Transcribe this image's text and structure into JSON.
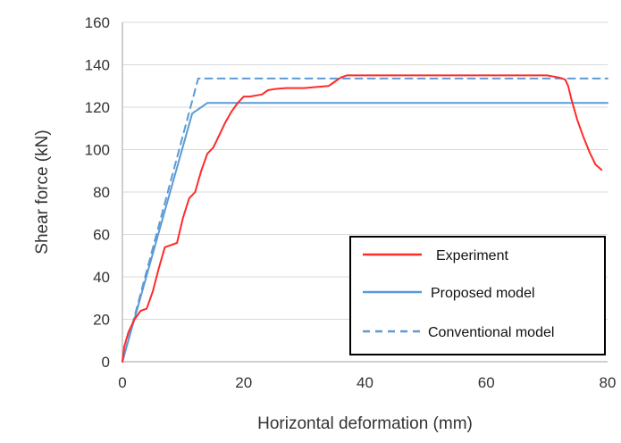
{
  "chart_data": {
    "type": "line",
    "title": "",
    "xlabel": "Horizontal deformation (mm)",
    "ylabel": "Shear force (kN)",
    "xlim": [
      0,
      80
    ],
    "ylim": [
      0,
      160
    ],
    "xticks": [
      0,
      20,
      40,
      60,
      80
    ],
    "yticks": [
      0,
      20,
      40,
      60,
      80,
      100,
      120,
      140,
      160
    ],
    "grid": "horizontal",
    "legend_position": "bottom-right",
    "series": [
      {
        "name": "Experiment",
        "color": "#ff2a2a",
        "style": "solid",
        "x": [
          0,
          0.3,
          1,
          2,
          3,
          4,
          5,
          6,
          7,
          8,
          9,
          10,
          11,
          12,
          13,
          14,
          15,
          16,
          17,
          18,
          19,
          20,
          21,
          23,
          24,
          25,
          27,
          30,
          32,
          34,
          35,
          36,
          37,
          40,
          45,
          50,
          55,
          60,
          65,
          70,
          72,
          73,
          73.5,
          74,
          75,
          76,
          77,
          78,
          79
        ],
        "y": [
          0,
          7,
          14,
          20,
          24,
          25,
          33,
          44,
          54,
          55,
          56,
          68,
          77,
          80,
          90,
          98,
          101,
          107,
          113,
          118,
          122,
          125,
          125,
          126,
          128,
          128.5,
          129,
          129,
          129.5,
          130,
          132,
          134,
          135,
          135,
          135,
          135,
          135,
          135,
          135,
          135,
          134,
          133,
          130,
          124,
          114,
          106,
          99,
          93,
          90.5
        ]
      },
      {
        "name": "Proposed model",
        "color": "#5b9bd5",
        "style": "solid",
        "x": [
          0,
          11.5,
          14,
          80
        ],
        "y": [
          0,
          117,
          122,
          122
        ]
      },
      {
        "name": "Conventional model",
        "color": "#5b9bd5",
        "style": "dashed",
        "x": [
          0,
          12.5,
          80
        ],
        "y": [
          0,
          133.5,
          133.5
        ]
      }
    ]
  }
}
